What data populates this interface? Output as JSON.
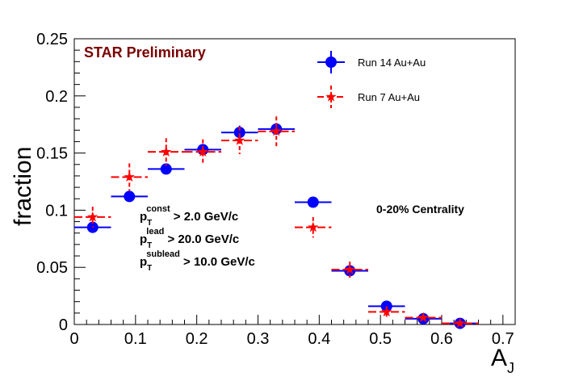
{
  "chart_data": {
    "type": "scatter",
    "title": "",
    "xlabel_main": "A",
    "xlabel_sub": "J",
    "ylabel": "fraction",
    "xlim": [
      0,
      0.72
    ],
    "ylim": [
      0,
      0.25
    ],
    "grid": false,
    "legend_position": "top-right",
    "x_ticks": [
      0,
      0.1,
      0.2,
      0.3,
      0.4,
      0.5,
      0.6,
      0.7
    ],
    "x_tick_labels": [
      "0",
      "0.1",
      "0.2",
      "0.3",
      "0.4",
      "0.5",
      "0.6",
      "0.7"
    ],
    "y_ticks": [
      0,
      0.05,
      0.1,
      0.15,
      0.2,
      0.25
    ],
    "y_tick_labels": [
      "0",
      "0.05",
      "0.1",
      "0.15",
      "0.2",
      "0.25"
    ],
    "series": [
      {
        "name": "Run 14 Au+Au",
        "color": "#0000ff",
        "marker": "circle",
        "x": [
          0.03,
          0.09,
          0.15,
          0.21,
          0.27,
          0.33,
          0.39,
          0.45,
          0.51,
          0.57,
          0.63
        ],
        "y": [
          0.085,
          0.112,
          0.136,
          0.153,
          0.168,
          0.171,
          0.107,
          0.047,
          0.016,
          0.005,
          0.001
        ],
        "yerr": [
          0.003,
          0.003,
          0.003,
          0.003,
          0.006,
          0.004,
          0.002,
          0.004,
          0.002,
          0.001,
          0.0008
        ],
        "xerr": 0.03
      },
      {
        "name": "Run 7 Au+Au",
        "color": "#ff0000",
        "marker": "star",
        "x": [
          0.03,
          0.09,
          0.15,
          0.21,
          0.27,
          0.33,
          0.39,
          0.45,
          0.51,
          0.57,
          0.63
        ],
        "y": [
          0.094,
          0.129,
          0.151,
          0.151,
          0.161,
          0.169,
          0.085,
          0.048,
          0.011,
          0.006,
          0.001
        ],
        "yerr": [
          0.009,
          0.012,
          0.012,
          0.011,
          0.012,
          0.013,
          0.009,
          0.007,
          0.005,
          0.002,
          0.001
        ],
        "xerr": 0.03
      }
    ],
    "annotations": {
      "star_label": "STAR Preliminary",
      "centrality": "0-20% Centrality",
      "cuts": [
        {
          "p": "p",
          "sub": "T",
          "sup": "const",
          "rest": " > 2.0 GeV/c"
        },
        {
          "p": "p",
          "sub": "T",
          "sup": "lead",
          "rest": " > 20.0 GeV/c"
        },
        {
          "p": "p",
          "sub": "T",
          "sup": "sublead",
          "rest": " > 10.0 GeV/c"
        }
      ]
    }
  }
}
